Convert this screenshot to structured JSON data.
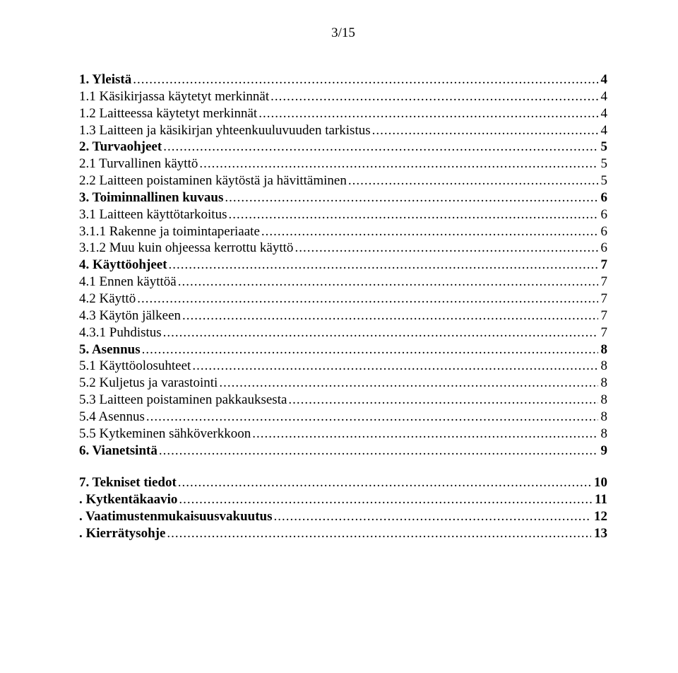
{
  "page_number": "3/15",
  "font_family": "Times New Roman",
  "text_color": "#000000",
  "background_color": "#ffffff",
  "base_fontsize_pt": 14,
  "toc": [
    {
      "label": "1. Yleistä",
      "page": "4",
      "bold": true,
      "indent": 0
    },
    {
      "label": "1.1 Käsikirjassa käytetyt merkinnät",
      "page": "4",
      "bold": false,
      "indent": 1
    },
    {
      "label": "1.2 Laitteessa käytetyt merkinnät",
      "page": "4",
      "bold": false,
      "indent": 1
    },
    {
      "label": "1.3 Laitteen ja käsikirjan yhteenkuuluvuuden tarkistus",
      "page": "4",
      "bold": false,
      "indent": 1
    },
    {
      "label": "2. Turvaohjeet",
      "page": "5",
      "bold": true,
      "indent": 0
    },
    {
      "label": "2.1 Turvallinen käyttö",
      "page": "5",
      "bold": false,
      "indent": 1
    },
    {
      "label": "2.2 Laitteen poistaminen käytöstä ja hävittäminen",
      "page": "5",
      "bold": false,
      "indent": 1
    },
    {
      "label": "3. Toiminnallinen kuvaus",
      "page": "6",
      "bold": true,
      "indent": 0
    },
    {
      "label": "3.1 Laitteen käyttötarkoitus",
      "page": "6",
      "bold": false,
      "indent": 1
    },
    {
      "label": "3.1.1 Rakenne ja toimintaperiaate",
      "page": "6",
      "bold": false,
      "indent": 2
    },
    {
      "label": "3.1.2 Muu kuin ohjeessa kerrottu käyttö",
      "page": "6",
      "bold": false,
      "indent": 2
    },
    {
      "label": "4. Käyttöohjeet",
      "page": "7",
      "bold": true,
      "indent": 0
    },
    {
      "label": "4.1 Ennen käyttöä",
      "page": "7",
      "bold": false,
      "indent": 1
    },
    {
      "label": "4.2 Käyttö",
      "page": "7",
      "bold": false,
      "indent": 1
    },
    {
      "label": "4.3 Käytön jälkeen",
      "page": "7",
      "bold": false,
      "indent": 1
    },
    {
      "label": "4.3.1 Puhdistus",
      "page": "7",
      "bold": false,
      "indent": 2
    },
    {
      "label": "5. Asennus",
      "page": "8",
      "bold": true,
      "indent": 0
    },
    {
      "label": "5.1 Käyttöolosuhteet",
      "page": "8",
      "bold": false,
      "indent": 1
    },
    {
      "label": "5.2 Kuljetus ja varastointi",
      "page": "8",
      "bold": false,
      "indent": 1
    },
    {
      "label": "5.3 Laitteen poistaminen pakkauksesta",
      "page": "8",
      "bold": false,
      "indent": 1
    },
    {
      "label": "5.4 Asennus",
      "page": "8",
      "bold": false,
      "indent": 1
    },
    {
      "label": "5.5 Kytkeminen sähköverkkoon",
      "page": "8",
      "bold": false,
      "indent": 1
    },
    {
      "label": "6. Vianetsintä",
      "page": "9",
      "bold": true,
      "indent": 0
    }
  ],
  "toc_lower": [
    {
      "label": "7. Tekniset tiedot",
      "page": "10",
      "bold": true,
      "indent": 0
    },
    {
      "label": ". Kytkentäkaavio",
      "page": "11",
      "bold": true,
      "indent": 0
    },
    {
      "label": ". Vaatimustenmukaisuusvakuutus",
      "page": "12",
      "bold": true,
      "indent": 0
    },
    {
      "label": ". Kierrätysohje",
      "page": "13",
      "bold": true,
      "indent": 0
    }
  ]
}
